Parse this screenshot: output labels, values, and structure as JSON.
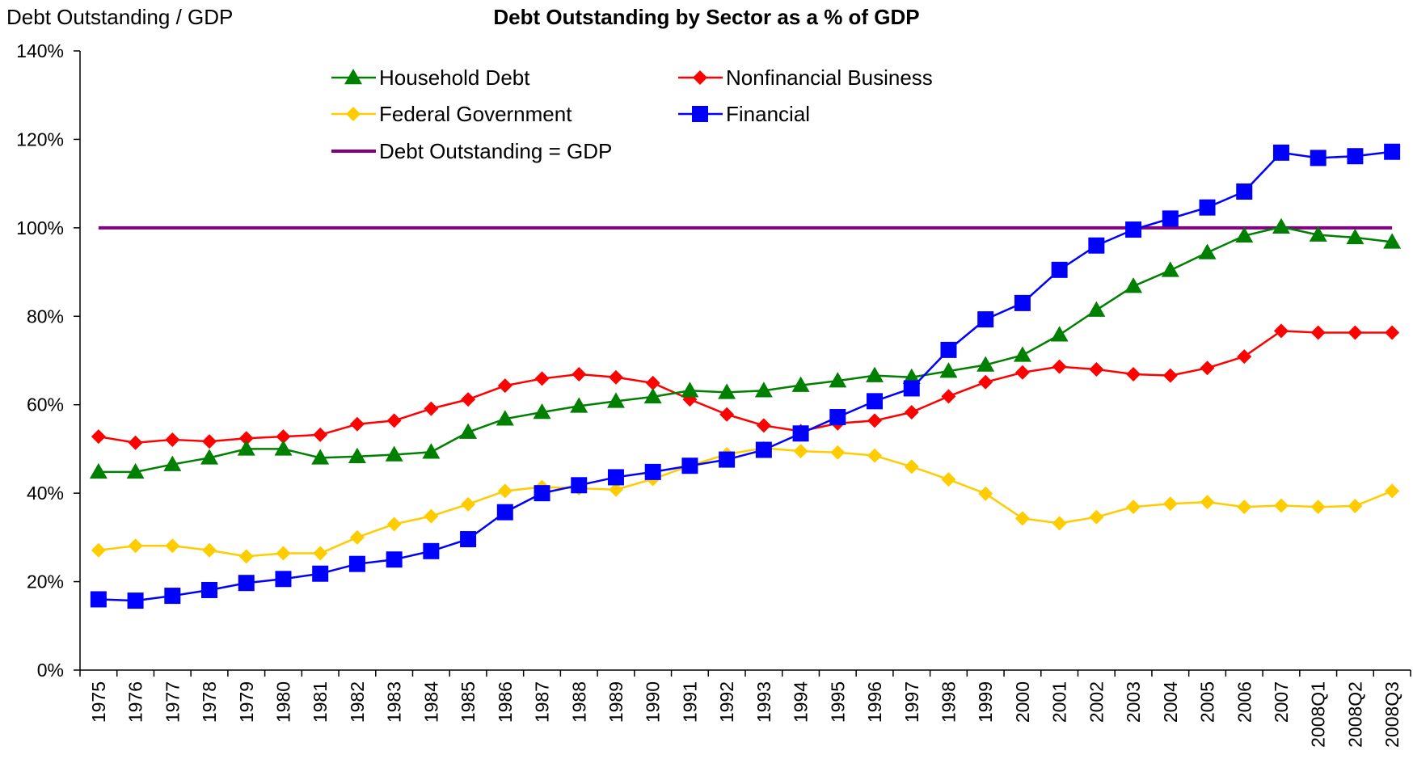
{
  "chart_data": {
    "type": "line",
    "title": "Debt Outstanding by Sector as a % of GDP",
    "ylabel": "Debt Outstanding / GDP",
    "xlabel": "",
    "ylim": [
      0,
      140
    ],
    "y_ticks": [
      "0%",
      "20%",
      "40%",
      "60%",
      "80%",
      "100%",
      "120%",
      "140%"
    ],
    "y_tick_values": [
      0,
      20,
      40,
      60,
      80,
      100,
      120,
      140
    ],
    "y_unit": "%",
    "grid": false,
    "legend_position": "top-center",
    "categories": [
      "1975",
      "1976",
      "1977",
      "1978",
      "1979",
      "1980",
      "1981",
      "1982",
      "1983",
      "1984",
      "1985",
      "1986",
      "1987",
      "1988",
      "1989",
      "1990",
      "1991",
      "1992",
      "1993",
      "1994",
      "1995",
      "1996",
      "1997",
      "1998",
      "1999",
      "2000",
      "2001",
      "2002",
      "2003",
      "2004",
      "2005",
      "2006",
      "2007",
      "2008Q1",
      "2008Q2",
      "2008Q3"
    ],
    "series": [
      {
        "name": "Household Debt",
        "color": "#008000",
        "marker": "triangle",
        "values": [
          44.8,
          44.8,
          46.5,
          48.0,
          50.0,
          50.0,
          48.0,
          48.3,
          48.7,
          49.3,
          53.8,
          56.8,
          58.3,
          59.7,
          60.8,
          61.8,
          63.2,
          62.8,
          63.2,
          64.4,
          65.4,
          66.6,
          66.2,
          67.6,
          69.0,
          71.2,
          75.8,
          81.4,
          86.8,
          90.4,
          94.4,
          98.2,
          100.2,
          98.4,
          97.8,
          96.8
        ]
      },
      {
        "name": "Nonfinancial Business",
        "color": "#ff0000",
        "marker": "diamond",
        "values": [
          52.8,
          51.4,
          52.1,
          51.7,
          52.4,
          52.8,
          53.2,
          55.6,
          56.4,
          59.1,
          61.2,
          64.3,
          65.9,
          66.9,
          66.2,
          64.9,
          61.2,
          57.8,
          55.3,
          54.0,
          55.8,
          56.4,
          58.3,
          61.9,
          65.1,
          67.3,
          68.6,
          68.0,
          66.9,
          66.6,
          68.3,
          70.9,
          76.7,
          76.3,
          76.3,
          76.3
        ]
      },
      {
        "name": "Federal Government",
        "color": "#ffcc00",
        "marker": "diamond",
        "values": [
          27.1,
          28.1,
          28.1,
          27.1,
          25.7,
          26.4,
          26.4,
          30.0,
          33.0,
          34.8,
          37.5,
          40.5,
          41.4,
          41.1,
          40.8,
          43.2,
          46.2,
          48.8,
          50.2,
          49.5,
          49.2,
          48.5,
          46.0,
          43.1,
          39.9,
          34.3,
          33.2,
          34.6,
          36.9,
          37.6,
          38.0,
          36.9,
          37.2,
          36.9,
          37.1,
          40.5
        ]
      },
      {
        "name": "Financial",
        "color": "#0000ff",
        "marker": "square",
        "values": [
          16.0,
          15.7,
          16.8,
          18.1,
          19.7,
          20.6,
          21.8,
          24.0,
          25.0,
          26.9,
          29.6,
          35.7,
          40.0,
          41.8,
          43.6,
          44.8,
          46.2,
          47.6,
          49.8,
          53.5,
          57.2,
          60.8,
          63.7,
          72.4,
          79.3,
          83.0,
          90.5,
          96.0,
          99.6,
          102.1,
          104.6,
          108.2,
          117.0,
          115.8,
          116.2,
          117.2
        ]
      },
      {
        "name": "Debt Outstanding = GDP",
        "color": "#800080",
        "marker": "none",
        "values": [
          100,
          100,
          100,
          100,
          100,
          100,
          100,
          100,
          100,
          100,
          100,
          100,
          100,
          100,
          100,
          100,
          100,
          100,
          100,
          100,
          100,
          100,
          100,
          100,
          100,
          100,
          100,
          100,
          100,
          100,
          100,
          100,
          100,
          100,
          100,
          100
        ]
      }
    ]
  }
}
